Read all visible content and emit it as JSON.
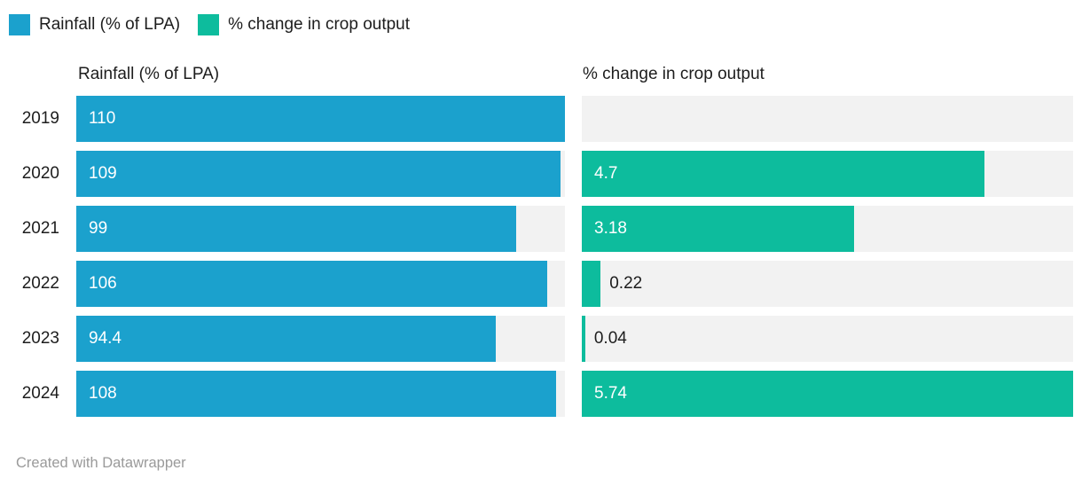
{
  "legend": {
    "items": [
      {
        "label": "Rainfall (% of LPA)",
        "color": "#1ba1cd"
      },
      {
        "label": "% change in crop output",
        "color": "#0dbc9d"
      }
    ]
  },
  "panels": {
    "left_header": "Rainfall (% of LPA)",
    "right_header": "% change in crop output"
  },
  "footer": {
    "text": "Created with Datawrapper"
  },
  "colors": {
    "rainfall_bar": "#1ba1cd",
    "crop_bar": "#0dbc9d",
    "track_background": "#f2f2f2",
    "text_dark": "#1d1d1d",
    "label_on_bar": "#ffffff",
    "footer_text": "#9a9a9a"
  },
  "chart_data": {
    "type": "bar",
    "orientation": "horizontal",
    "layout": {
      "legend_position": "top",
      "value_labels": "on_bars",
      "track_background": true,
      "panels": "split-bars side by side per category"
    },
    "categories": [
      "2019",
      "2020",
      "2021",
      "2022",
      "2023",
      "2024"
    ],
    "series": [
      {
        "name": "Rainfall (% of LPA)",
        "color": "#1ba1cd",
        "axis_max": 110,
        "values": [
          110,
          109,
          99,
          106,
          94.4,
          108
        ],
        "labels": [
          "110",
          "109",
          "99",
          "106",
          "94.4",
          "108"
        ]
      },
      {
        "name": "% change in crop output",
        "color": "#0dbc9d",
        "axis_max": 5.74,
        "values": [
          null,
          4.7,
          3.18,
          0.22,
          0.04,
          5.74
        ],
        "labels": [
          "",
          "4.7",
          "3.18",
          "0.22",
          "0.04",
          "5.74"
        ]
      }
    ]
  }
}
